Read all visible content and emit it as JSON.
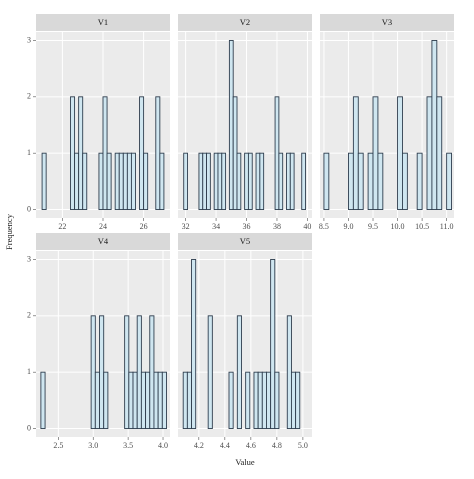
{
  "xlabel": "Value",
  "ylabel": "Frequency",
  "chart_data": [
    {
      "type": "histogram",
      "title": "V1",
      "color": "#cfe6f0",
      "edgecolor": "#2f3e4e",
      "bins": [
        21.0,
        21.2,
        21.4,
        21.6,
        21.8,
        22.0,
        22.2,
        22.4,
        22.6,
        22.8,
        23.0,
        23.2,
        23.4,
        23.6,
        23.8,
        24.0,
        24.2,
        24.4,
        24.6,
        24.8,
        25.0,
        25.2,
        25.4,
        25.6,
        25.8,
        26.0,
        26.2,
        26.4,
        26.6,
        26.8,
        27.0
      ],
      "values": [
        1,
        0,
        0,
        0,
        0,
        0,
        0,
        2,
        1,
        2,
        1,
        0,
        0,
        0,
        1,
        2,
        1,
        0,
        1,
        1,
        1,
        1,
        1,
        0,
        2,
        1,
        0,
        0,
        2,
        1
      ],
      "xlim": [
        20.7,
        27.3
      ],
      "xticks": [
        22,
        24,
        26
      ],
      "ylim": [
        -0.15,
        3.15
      ],
      "yticks": [
        0,
        1,
        2,
        3
      ]
    },
    {
      "type": "histogram",
      "title": "V2",
      "color": "#cfe6f0",
      "edgecolor": "#2f3e4e",
      "bins": [
        31.875,
        32.125,
        32.375,
        32.625,
        32.875,
        33.125,
        33.375,
        33.625,
        33.875,
        34.125,
        34.375,
        34.625,
        34.875,
        35.125,
        35.375,
        35.625,
        35.875,
        36.125,
        36.375,
        36.625,
        36.875,
        37.125,
        37.375,
        37.625,
        37.875,
        38.125,
        38.375,
        38.625,
        38.875,
        39.125,
        39.375,
        39.625,
        39.875
      ],
      "values": [
        1,
        0,
        0,
        0,
        1,
        1,
        1,
        0,
        1,
        1,
        1,
        0,
        3,
        2,
        1,
        0,
        1,
        1,
        0,
        1,
        1,
        0,
        0,
        0,
        2,
        1,
        0,
        1,
        1,
        0,
        0,
        1
      ],
      "xlim": [
        31.5,
        40.3
      ],
      "xticks": [
        32,
        34,
        36,
        38,
        40
      ],
      "ylim": [
        -0.15,
        3.15
      ],
      "yticks": [
        0,
        1,
        2,
        3
      ]
    },
    {
      "type": "histogram",
      "title": "V3",
      "color": "#cfe6f0",
      "edgecolor": "#2f3e4e",
      "bins": [
        8.5,
        8.6,
        8.7,
        8.8,
        8.9,
        9.0,
        9.1,
        9.2,
        9.3,
        9.4,
        9.5,
        9.6,
        9.7,
        9.8,
        9.9,
        10.0,
        10.1,
        10.2,
        10.3,
        10.4,
        10.5,
        10.6,
        10.7,
        10.8,
        10.9,
        11.0,
        11.1
      ],
      "values": [
        1,
        0,
        0,
        0,
        0,
        1,
        2,
        1,
        0,
        1,
        2,
        1,
        0,
        0,
        0,
        2,
        1,
        0,
        0,
        1,
        0,
        2,
        3,
        2,
        0,
        1
      ],
      "xlim": [
        8.42,
        11.15
      ],
      "xticks": [
        8.5,
        {
          "value": 9,
          "label": "9.0"
        },
        9.5,
        {
          "value": 10,
          "label": "10.0"
        },
        10.5,
        {
          "value": 11,
          "label": "11.0"
        }
      ],
      "ylim": [
        -0.15,
        3.15
      ],
      "yticks": [
        0,
        1,
        2,
        3
      ]
    },
    {
      "type": "histogram",
      "title": "V4",
      "color": "#cfe6f0",
      "edgecolor": "#2f3e4e",
      "bins": [
        2.25,
        2.31,
        2.37,
        2.43,
        2.49,
        2.55,
        2.61,
        2.67,
        2.73,
        2.79,
        2.85,
        2.91,
        2.97,
        3.03,
        3.09,
        3.15,
        3.21,
        3.27,
        3.33,
        3.39,
        3.45,
        3.51,
        3.57,
        3.63,
        3.69,
        3.75,
        3.81,
        3.87,
        3.93,
        3.99,
        4.05
      ],
      "values": [
        1,
        0,
        0,
        0,
        0,
        0,
        0,
        0,
        0,
        0,
        0,
        0,
        2,
        1,
        2,
        1,
        0,
        0,
        0,
        0,
        2,
        1,
        1,
        2,
        1,
        1,
        2,
        1,
        1,
        1
      ],
      "xlim": [
        2.18,
        4.1
      ],
      "xticks": [
        2.5,
        {
          "value": 3,
          "label": "3.0"
        },
        3.5,
        {
          "value": 4,
          "label": "4.0"
        }
      ],
      "ylim": [
        -0.15,
        3.15
      ],
      "yticks": [
        0,
        1,
        2,
        3
      ]
    },
    {
      "type": "histogram",
      "title": "V5",
      "color": "#cfe6f0",
      "edgecolor": "#2f3e4e",
      "bins": [
        4.08,
        4.112,
        4.144,
        4.176,
        4.208,
        4.24,
        4.272,
        4.304,
        4.336,
        4.368,
        4.4,
        4.432,
        4.464,
        4.496,
        4.528,
        4.56,
        4.592,
        4.624,
        4.656,
        4.688,
        4.72,
        4.752,
        4.784,
        4.816,
        4.848,
        4.88,
        4.912,
        4.944,
        4.976,
        5.008,
        5.04
      ],
      "values": [
        1,
        1,
        3,
        0,
        0,
        0,
        2,
        0,
        0,
        0,
        0,
        1,
        0,
        2,
        0,
        1,
        0,
        1,
        1,
        1,
        1,
        3,
        1,
        0,
        0,
        2,
        1,
        1,
        0,
        0
      ],
      "xlim": [
        4.04,
        5.07
      ],
      "xticks": [
        4.2,
        4.4,
        4.6,
        4.8,
        {
          "value": 5,
          "label": "5.0"
        }
      ],
      "ylim": [
        -0.15,
        3.15
      ],
      "yticks": [
        0,
        1,
        2,
        3
      ]
    }
  ]
}
